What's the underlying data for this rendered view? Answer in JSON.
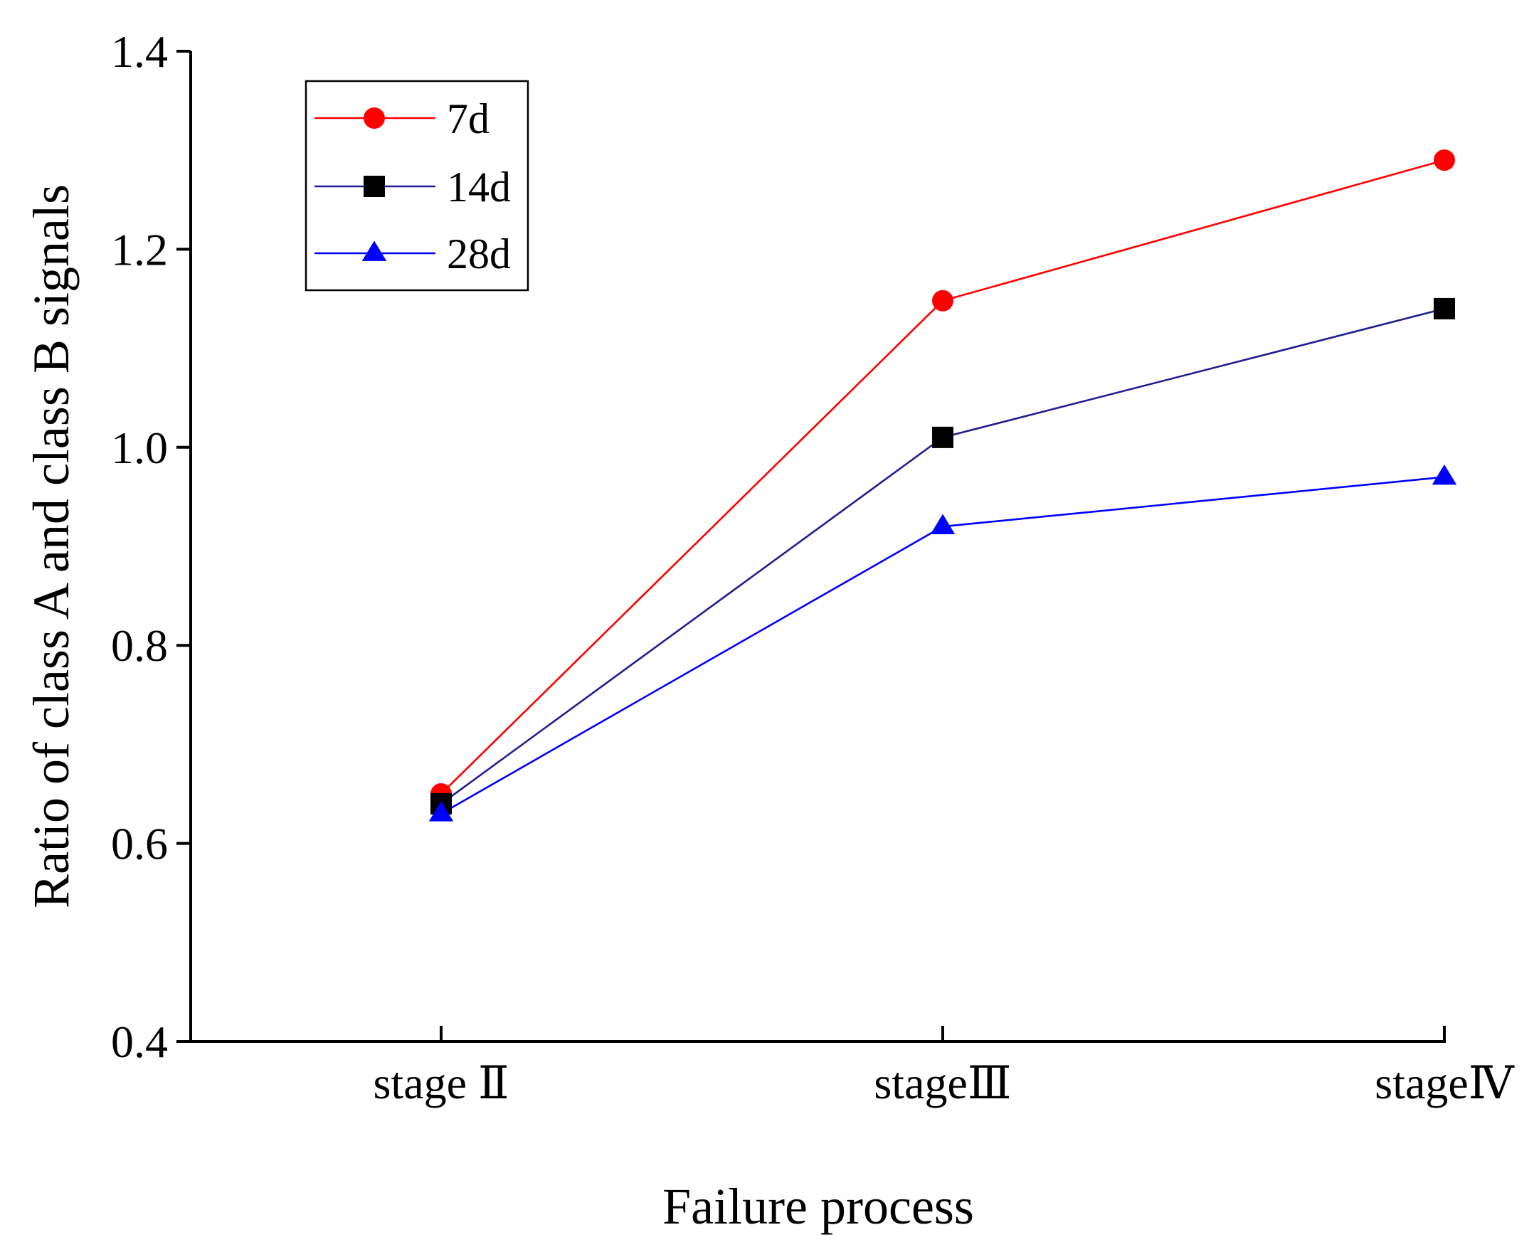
{
  "chart_data": {
    "type": "line",
    "title": "",
    "xlabel": "Failure process",
    "ylabel": "Ratio of class A and class B signals",
    "categories": [
      "stage Ⅱ",
      "stageⅢ",
      "stageⅣ"
    ],
    "ylim": [
      0.4,
      1.4
    ],
    "yticks": [
      0.4,
      0.6,
      0.8,
      1.0,
      1.2,
      1.4
    ],
    "ytick_labels": [
      "0.4",
      "0.6",
      "0.8",
      "1.0",
      "1.2",
      "1.4"
    ],
    "grid": false,
    "legend_position": "top-left",
    "series": [
      {
        "name": "7d",
        "values": [
          0.65,
          1.148,
          1.29
        ],
        "color": "#ff0000",
        "marker": "circle"
      },
      {
        "name": "14d",
        "values": [
          0.64,
          1.01,
          1.14
        ],
        "color": "#000000",
        "line_color": "#1f1f8f",
        "marker": "square"
      },
      {
        "name": "28d",
        "values": [
          0.63,
          0.92,
          0.97
        ],
        "color": "#0000ff",
        "marker": "triangle"
      }
    ]
  }
}
